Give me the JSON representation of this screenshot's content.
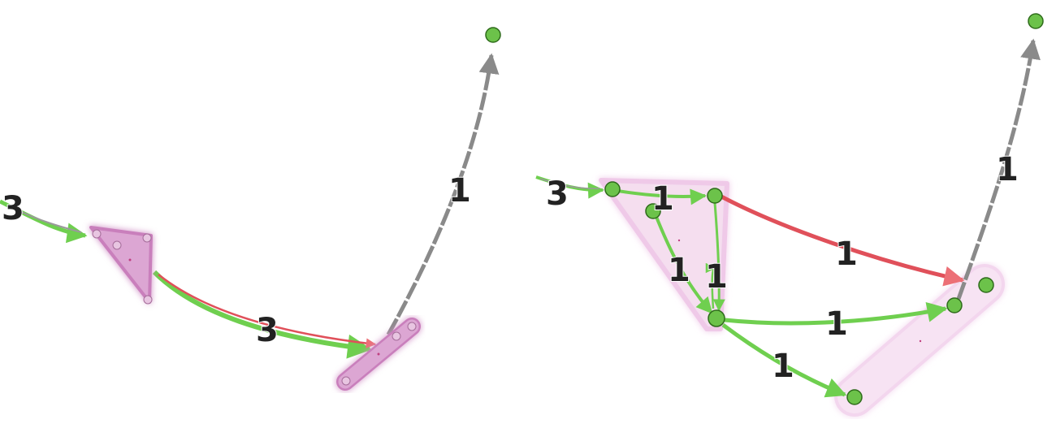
{
  "panels": [
    {
      "id": "collapsed",
      "edge_labels": {
        "incoming": "3",
        "middle": "3",
        "outgoing": "1"
      }
    },
    {
      "id": "expanded",
      "edge_labels": {
        "incoming": "3",
        "top": "1",
        "red": "1",
        "left_down": "1",
        "up_down": "1",
        "mid_right": "1",
        "bottom": "1",
        "outgoing": "1"
      }
    }
  ],
  "colors": {
    "node_fill": "#6cc24a",
    "node_stroke": "#2e6b1b",
    "edge_green": "#6fcf4f",
    "edge_red": "#e0505a",
    "edge_gray": "#8a8a8a",
    "group_fill": "#e0a9d6",
    "group_stroke": "#c77ab8",
    "group_light_fill": "#f5dff0",
    "label_color": "#222222"
  }
}
